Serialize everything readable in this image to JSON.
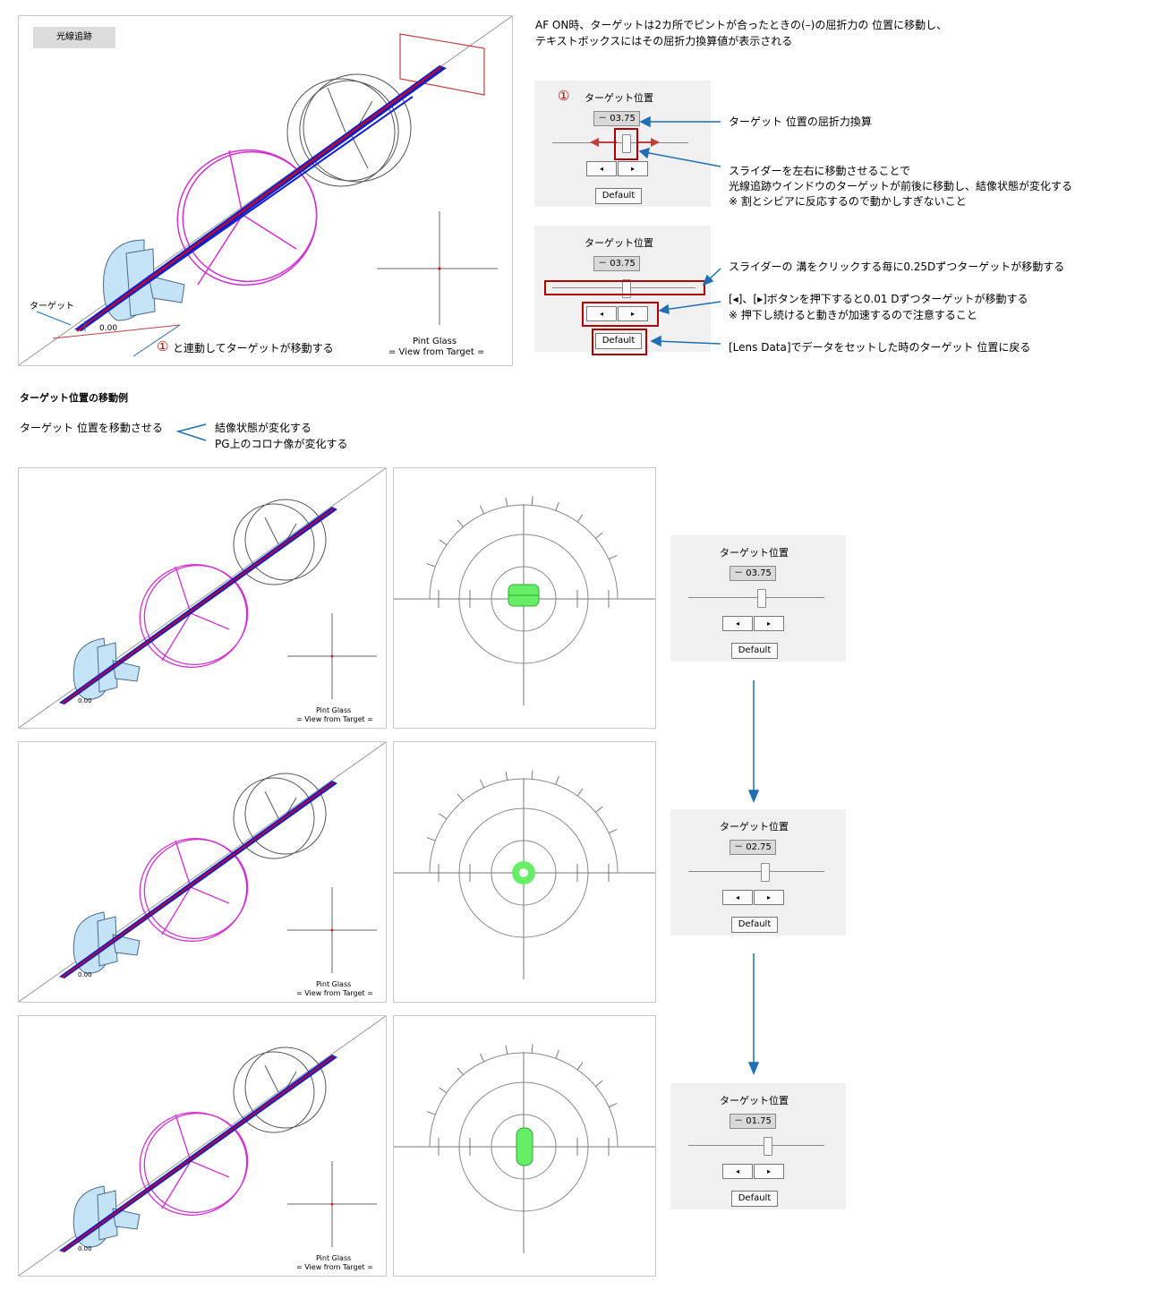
{
  "window": {
    "title": "光線追跡",
    "target_label": "ターゲット",
    "target_value": "0.00",
    "pint_glass": "Pint Glass",
    "view_from": "= View from Target =",
    "link_note": "と連動してターゲットが移動する",
    "marker": "①"
  },
  "intro": {
    "line1": "AF ON時、ターゲットは2カ所でピントが合ったときの(–)の屈折力の 位置に移動し、",
    "line2": "テキストボックスにはその屈折力換算値が表示される"
  },
  "control": {
    "title": "ターゲット位置",
    "value": "－ 03.75",
    "left_btn": "◂",
    "right_btn": "▸",
    "default_btn": "Default"
  },
  "annotations": {
    "refraction": "ターゲット 位置の屈折力換算",
    "slider1": "スライダーを左右に移動させることで",
    "slider2": "光線追跡ウインドウのターゲットが前後に移動し、結像状態が変化する",
    "slider3": "※ 割とシビアに反応するので動かしすぎないこと",
    "groove": "スライダーの 溝をクリックする毎に0.25Dずつターゲットが移動する",
    "buttons1": "[◂]、[▸]ボタンを押下すると0.01 Dずつターゲットが移動する",
    "buttons2": "※ 押下し続けると動きが加速するので注意すること",
    "default": "[Lens Data]でデータをセットした時のターゲット 位置に戻る"
  },
  "example": {
    "heading": "ターゲット位置の移動例",
    "move": "ターゲット 位置を移動させる",
    "result1": "結像状態が変化する",
    "result2": "PG上のコロナ像が変化する",
    "rows": [
      {
        "value": "－ 03.75",
        "slider_level": 0.53
      },
      {
        "value": "－ 02.75",
        "slider_level": 0.56
      },
      {
        "value": "－ 01.75",
        "slider_level": 0.58
      }
    ]
  },
  "colors": {
    "accent_red": "#b00000",
    "annotation_blue": "#1f6fb5",
    "lens_fill": "#c5e3f7",
    "ray_blue": "#1020d0",
    "ray_red": "#e00000",
    "magenta": "#d030d0",
    "spot_green": "#66ee66"
  }
}
